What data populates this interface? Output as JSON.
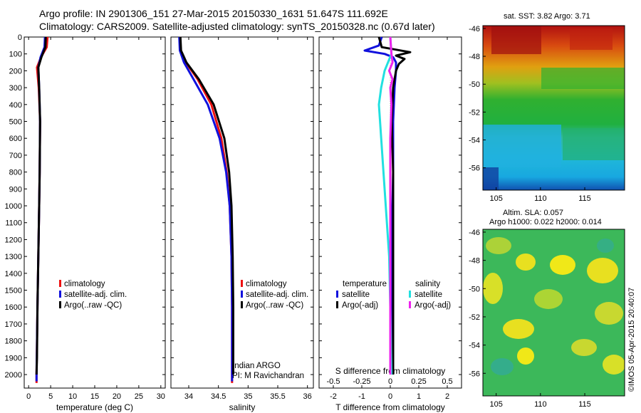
{
  "header": {
    "line1": "Argo profile: IN 2901306_151 27-Mar-2015 20150330_1631 51.647S 111.692E",
    "line2": "Climatology: CARS2009. Satellite-adjusted climatology: synTS_20150328.nc (0.67d later)"
  },
  "colors": {
    "climatology": "#ee1111",
    "satellite": "#1111dd",
    "argo": "#000000",
    "sal_satellite": "#22e0e0",
    "sal_argo": "#ee22ee"
  },
  "legend_panels": {
    "climatology": "climatology",
    "satellite": "satellite-adj. clim.",
    "argo": "Argo(..raw -QC)"
  },
  "legend_diff": {
    "temp_head": "temperature",
    "sal_head": "salinity",
    "temp_sat": "satellite",
    "temp_argo": "Argo(-adj)",
    "sal_sat": "satellite",
    "sal_argo": "Argo(-adj)"
  },
  "float_info": {
    "program": "Indian ARGO",
    "pi": "PI: M Ravichandran"
  },
  "maps": {
    "sst_title": "sat. SST: 3.82 Argo: 3.71",
    "sla_title1": "Altim. SLA: 0.057",
    "sla_title2": "Argo h1000: 0.022 h2000: 0.014",
    "lon_ticks": [
      "105",
      "110",
      "115"
    ],
    "lat_ticks": [
      "-46",
      "-48",
      "-50",
      "-52",
      "-54",
      "-56"
    ]
  },
  "credit": "©IMOS 05-Apr-2015 20:40:07",
  "chart_data": [
    {
      "type": "line",
      "id": "temperature",
      "xlabel": "temperature (deg C)",
      "ylabel": "",
      "xlim": [
        -1,
        31
      ],
      "ylim": [
        2080,
        0
      ],
      "xticks": [
        0,
        5,
        10,
        15,
        20,
        25,
        30
      ],
      "xticklabels": [
        "0",
        "5",
        "10",
        "15",
        "20",
        "25",
        "30"
      ],
      "yticks": [
        0,
        100,
        200,
        300,
        400,
        500,
        600,
        700,
        800,
        900,
        1000,
        1100,
        1200,
        1300,
        1400,
        1500,
        1600,
        1700,
        1800,
        1900,
        2000
      ],
      "series": [
        {
          "name": "climatology",
          "color_key": "climatology",
          "depth": [
            0,
            60,
            120,
            180,
            300,
            500,
            800,
            1000,
            1300,
            1600,
            2000,
            2050
          ],
          "values": [
            4.3,
            4.1,
            2.8,
            1.9,
            2.3,
            2.6,
            2.5,
            2.4,
            2.2,
            2.0,
            1.8,
            1.8
          ]
        },
        {
          "name": "satellite-adj. clim.",
          "color_key": "satellite",
          "depth": [
            0,
            60,
            120,
            180,
            300,
            500,
            800,
            1000,
            1300,
            1600,
            2000,
            2040
          ],
          "values": [
            3.7,
            3.6,
            2.7,
            2.2,
            2.4,
            2.6,
            2.5,
            2.4,
            2.2,
            2.0,
            1.8,
            1.8
          ]
        },
        {
          "name": "Argo(..raw -QC)",
          "color_key": "argo",
          "depth": [
            0,
            60,
            120,
            180,
            300,
            500,
            800,
            1000,
            1300,
            1600,
            1900,
            2000
          ],
          "values": [
            3.9,
            3.8,
            2.9,
            2.2,
            2.4,
            2.6,
            2.5,
            2.4,
            2.2,
            2.0,
            1.9,
            1.8
          ]
        }
      ]
    },
    {
      "type": "line",
      "id": "salinity",
      "xlabel": "salinity",
      "ylabel": "",
      "xlim": [
        33.7,
        36.1
      ],
      "ylim": [
        2080,
        0
      ],
      "xticks": [
        34,
        34.5,
        35,
        35.5,
        36
      ],
      "xticklabels": [
        "34",
        "34.5",
        "35",
        "35.5",
        "36"
      ],
      "series": [
        {
          "name": "climatology",
          "color_key": "climatology",
          "depth": [
            0,
            80,
            150,
            250,
            400,
            600,
            800,
            1000,
            1300,
            1600,
            2000,
            2050
          ],
          "values": [
            33.85,
            33.86,
            33.95,
            34.15,
            34.38,
            34.55,
            34.64,
            34.69,
            34.72,
            34.73,
            34.73,
            34.73
          ]
        },
        {
          "name": "satellite-adj. clim.",
          "color_key": "satellite",
          "depth": [
            0,
            80,
            150,
            250,
            400,
            600,
            800,
            1000,
            1300,
            1600,
            2000,
            2040
          ],
          "values": [
            33.84,
            33.85,
            33.92,
            34.08,
            34.32,
            34.52,
            34.63,
            34.69,
            34.72,
            34.73,
            34.73,
            34.73
          ]
        },
        {
          "name": "Argo(..raw -QC)",
          "color_key": "argo",
          "depth": [
            0,
            80,
            150,
            250,
            400,
            600,
            800,
            1000,
            1300,
            1600,
            1900,
            2000
          ],
          "values": [
            33.86,
            33.87,
            33.96,
            34.17,
            34.42,
            34.6,
            34.68,
            34.72,
            34.74,
            34.75,
            34.75,
            34.75
          ]
        }
      ]
    },
    {
      "type": "line",
      "id": "difference",
      "xlabel": "T difference from climatology",
      "x2label": "S difference from climatology",
      "xlim": [
        -2.5,
        2.5
      ],
      "x2lim": [
        -0.625,
        0.625
      ],
      "ylim": [
        2080,
        0
      ],
      "xticks": [
        -2,
        -1,
        0,
        1,
        2
      ],
      "xticklabels": [
        "-2",
        "-1",
        "0",
        "1",
        "2"
      ],
      "x2ticks": [
        -0.5,
        -0.25,
        0,
        0.25,
        0.5
      ],
      "x2ticklabels": [
        "-0.5",
        "-0.25",
        "0",
        "0.25",
        "0.5"
      ],
      "series": [
        {
          "name": "T satellite",
          "axis": "T",
          "color_key": "satellite",
          "depth": [
            0,
            50,
            80,
            100,
            120,
            150,
            200,
            300,
            500,
            800,
            1200,
            1600,
            2000
          ],
          "values": [
            -0.3,
            -0.4,
            -0.9,
            -0.2,
            0.1,
            0.2,
            0.2,
            0.15,
            0.1,
            0.1,
            0.05,
            0.05,
            0.05
          ]
        },
        {
          "name": "T Argo(-adj)",
          "axis": "T",
          "color_key": "argo",
          "depth": [
            0,
            60,
            90,
            110,
            130,
            160,
            200,
            300,
            500,
            800,
            1200,
            1600,
            2000
          ],
          "values": [
            -0.4,
            -0.3,
            0.7,
            0.2,
            0.5,
            0.3,
            0.2,
            0.1,
            0.05,
            0.1,
            0.1,
            0.1,
            0.1
          ]
        },
        {
          "name": "S satellite",
          "axis": "S",
          "color_key": "sal_satellite",
          "depth": [
            0,
            100,
            200,
            300,
            400,
            600,
            800,
            1000,
            1300,
            1600,
            2000
          ],
          "values": [
            0.0,
            0.01,
            -0.05,
            -0.08,
            -0.1,
            -0.08,
            -0.06,
            -0.04,
            -0.01,
            0.0,
            0.01
          ]
        },
        {
          "name": "S Argo(-adj)",
          "axis": "S",
          "color_key": "sal_argo",
          "depth": [
            0,
            100,
            150,
            200,
            250,
            300,
            400,
            600,
            800,
            1000,
            1300,
            1600,
            2000
          ],
          "values": [
            0.0,
            0.01,
            0.02,
            -0.01,
            0.02,
            0.0,
            0.01,
            0.0,
            0.0,
            0.0,
            0.0,
            0.0,
            0.0
          ]
        }
      ]
    }
  ]
}
